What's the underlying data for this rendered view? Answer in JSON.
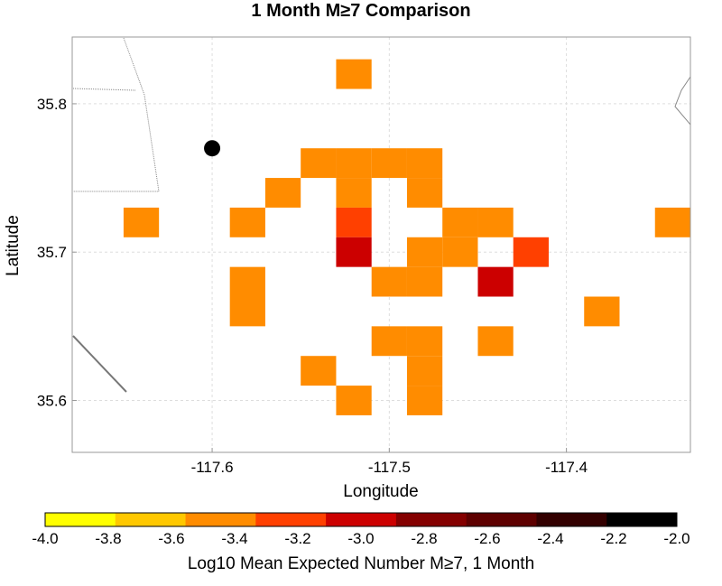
{
  "title": "1 Month M≥7 Comparison",
  "chart_data": {
    "type": "heatmap",
    "title": "1 Month M≥7 Comparison",
    "xlabel": "Longitude",
    "ylabel": "Latitude",
    "xlim": [
      -117.679,
      -117.33
    ],
    "ylim": [
      35.565,
      35.845
    ],
    "xticks": [
      -117.6,
      -117.5,
      -117.4
    ],
    "xtick_labels": [
      "-117.6",
      "-117.5",
      "-117.4"
    ],
    "yticks": [
      35.6,
      35.7,
      35.8
    ],
    "ytick_labels": [
      "35.6",
      "35.7",
      "35.8"
    ],
    "grid": true,
    "cell_size_deg": 0.02,
    "cells": [
      {
        "lon": -117.52,
        "lat": 35.82,
        "value": -3.4
      },
      {
        "lon": -117.54,
        "lat": 35.76,
        "value": -3.4
      },
      {
        "lon": -117.52,
        "lat": 35.76,
        "value": -3.4
      },
      {
        "lon": -117.5,
        "lat": 35.76,
        "value": -3.4
      },
      {
        "lon": -117.48,
        "lat": 35.76,
        "value": -3.4
      },
      {
        "lon": -117.56,
        "lat": 35.74,
        "value": -3.4
      },
      {
        "lon": -117.52,
        "lat": 35.74,
        "value": -3.4
      },
      {
        "lon": -117.48,
        "lat": 35.74,
        "value": -3.4
      },
      {
        "lon": -117.64,
        "lat": 35.72,
        "value": -3.4
      },
      {
        "lon": -117.58,
        "lat": 35.72,
        "value": -3.4
      },
      {
        "lon": -117.52,
        "lat": 35.72,
        "value": -3.2
      },
      {
        "lon": -117.46,
        "lat": 35.72,
        "value": -3.4
      },
      {
        "lon": -117.44,
        "lat": 35.72,
        "value": -3.4
      },
      {
        "lon": -117.34,
        "lat": 35.72,
        "value": -3.4
      },
      {
        "lon": -117.52,
        "lat": 35.7,
        "value": -2.9
      },
      {
        "lon": -117.48,
        "lat": 35.7,
        "value": -3.4
      },
      {
        "lon": -117.46,
        "lat": 35.7,
        "value": -3.4
      },
      {
        "lon": -117.42,
        "lat": 35.7,
        "value": -3.2
      },
      {
        "lon": -117.58,
        "lat": 35.68,
        "value": -3.4
      },
      {
        "lon": -117.5,
        "lat": 35.68,
        "value": -3.4
      },
      {
        "lon": -117.48,
        "lat": 35.68,
        "value": -3.4
      },
      {
        "lon": -117.44,
        "lat": 35.68,
        "value": -3.0
      },
      {
        "lon": -117.58,
        "lat": 35.66,
        "value": -3.4
      },
      {
        "lon": -117.38,
        "lat": 35.66,
        "value": -3.4
      },
      {
        "lon": -117.5,
        "lat": 35.64,
        "value": -3.4
      },
      {
        "lon": -117.48,
        "lat": 35.64,
        "value": -3.4
      },
      {
        "lon": -117.44,
        "lat": 35.64,
        "value": -3.4
      },
      {
        "lon": -117.54,
        "lat": 35.62,
        "value": -3.4
      },
      {
        "lon": -117.48,
        "lat": 35.62,
        "value": -3.4
      },
      {
        "lon": -117.52,
        "lat": 35.6,
        "value": -3.4
      },
      {
        "lon": -117.48,
        "lat": 35.6,
        "value": -3.4
      }
    ],
    "marker": {
      "lon": -117.6,
      "lat": 35.77,
      "color": "#000000"
    },
    "colorbar": {
      "label": "Log10 Mean Expected Number M≥7, 1 Month",
      "min": -4.0,
      "max": -2.0,
      "tick_labels": [
        "-4.0",
        "-3.8",
        "-3.6",
        "-3.4",
        "-3.2",
        "-3.0",
        "-2.8",
        "-2.6",
        "-2.4",
        "-2.2",
        "-2.0"
      ],
      "colors": [
        "#ffff00",
        "#ffc800",
        "#ff8c00",
        "#ff4000",
        "#cc0000",
        "#840000",
        "#5e0000",
        "#330000",
        "#000000"
      ]
    }
  }
}
